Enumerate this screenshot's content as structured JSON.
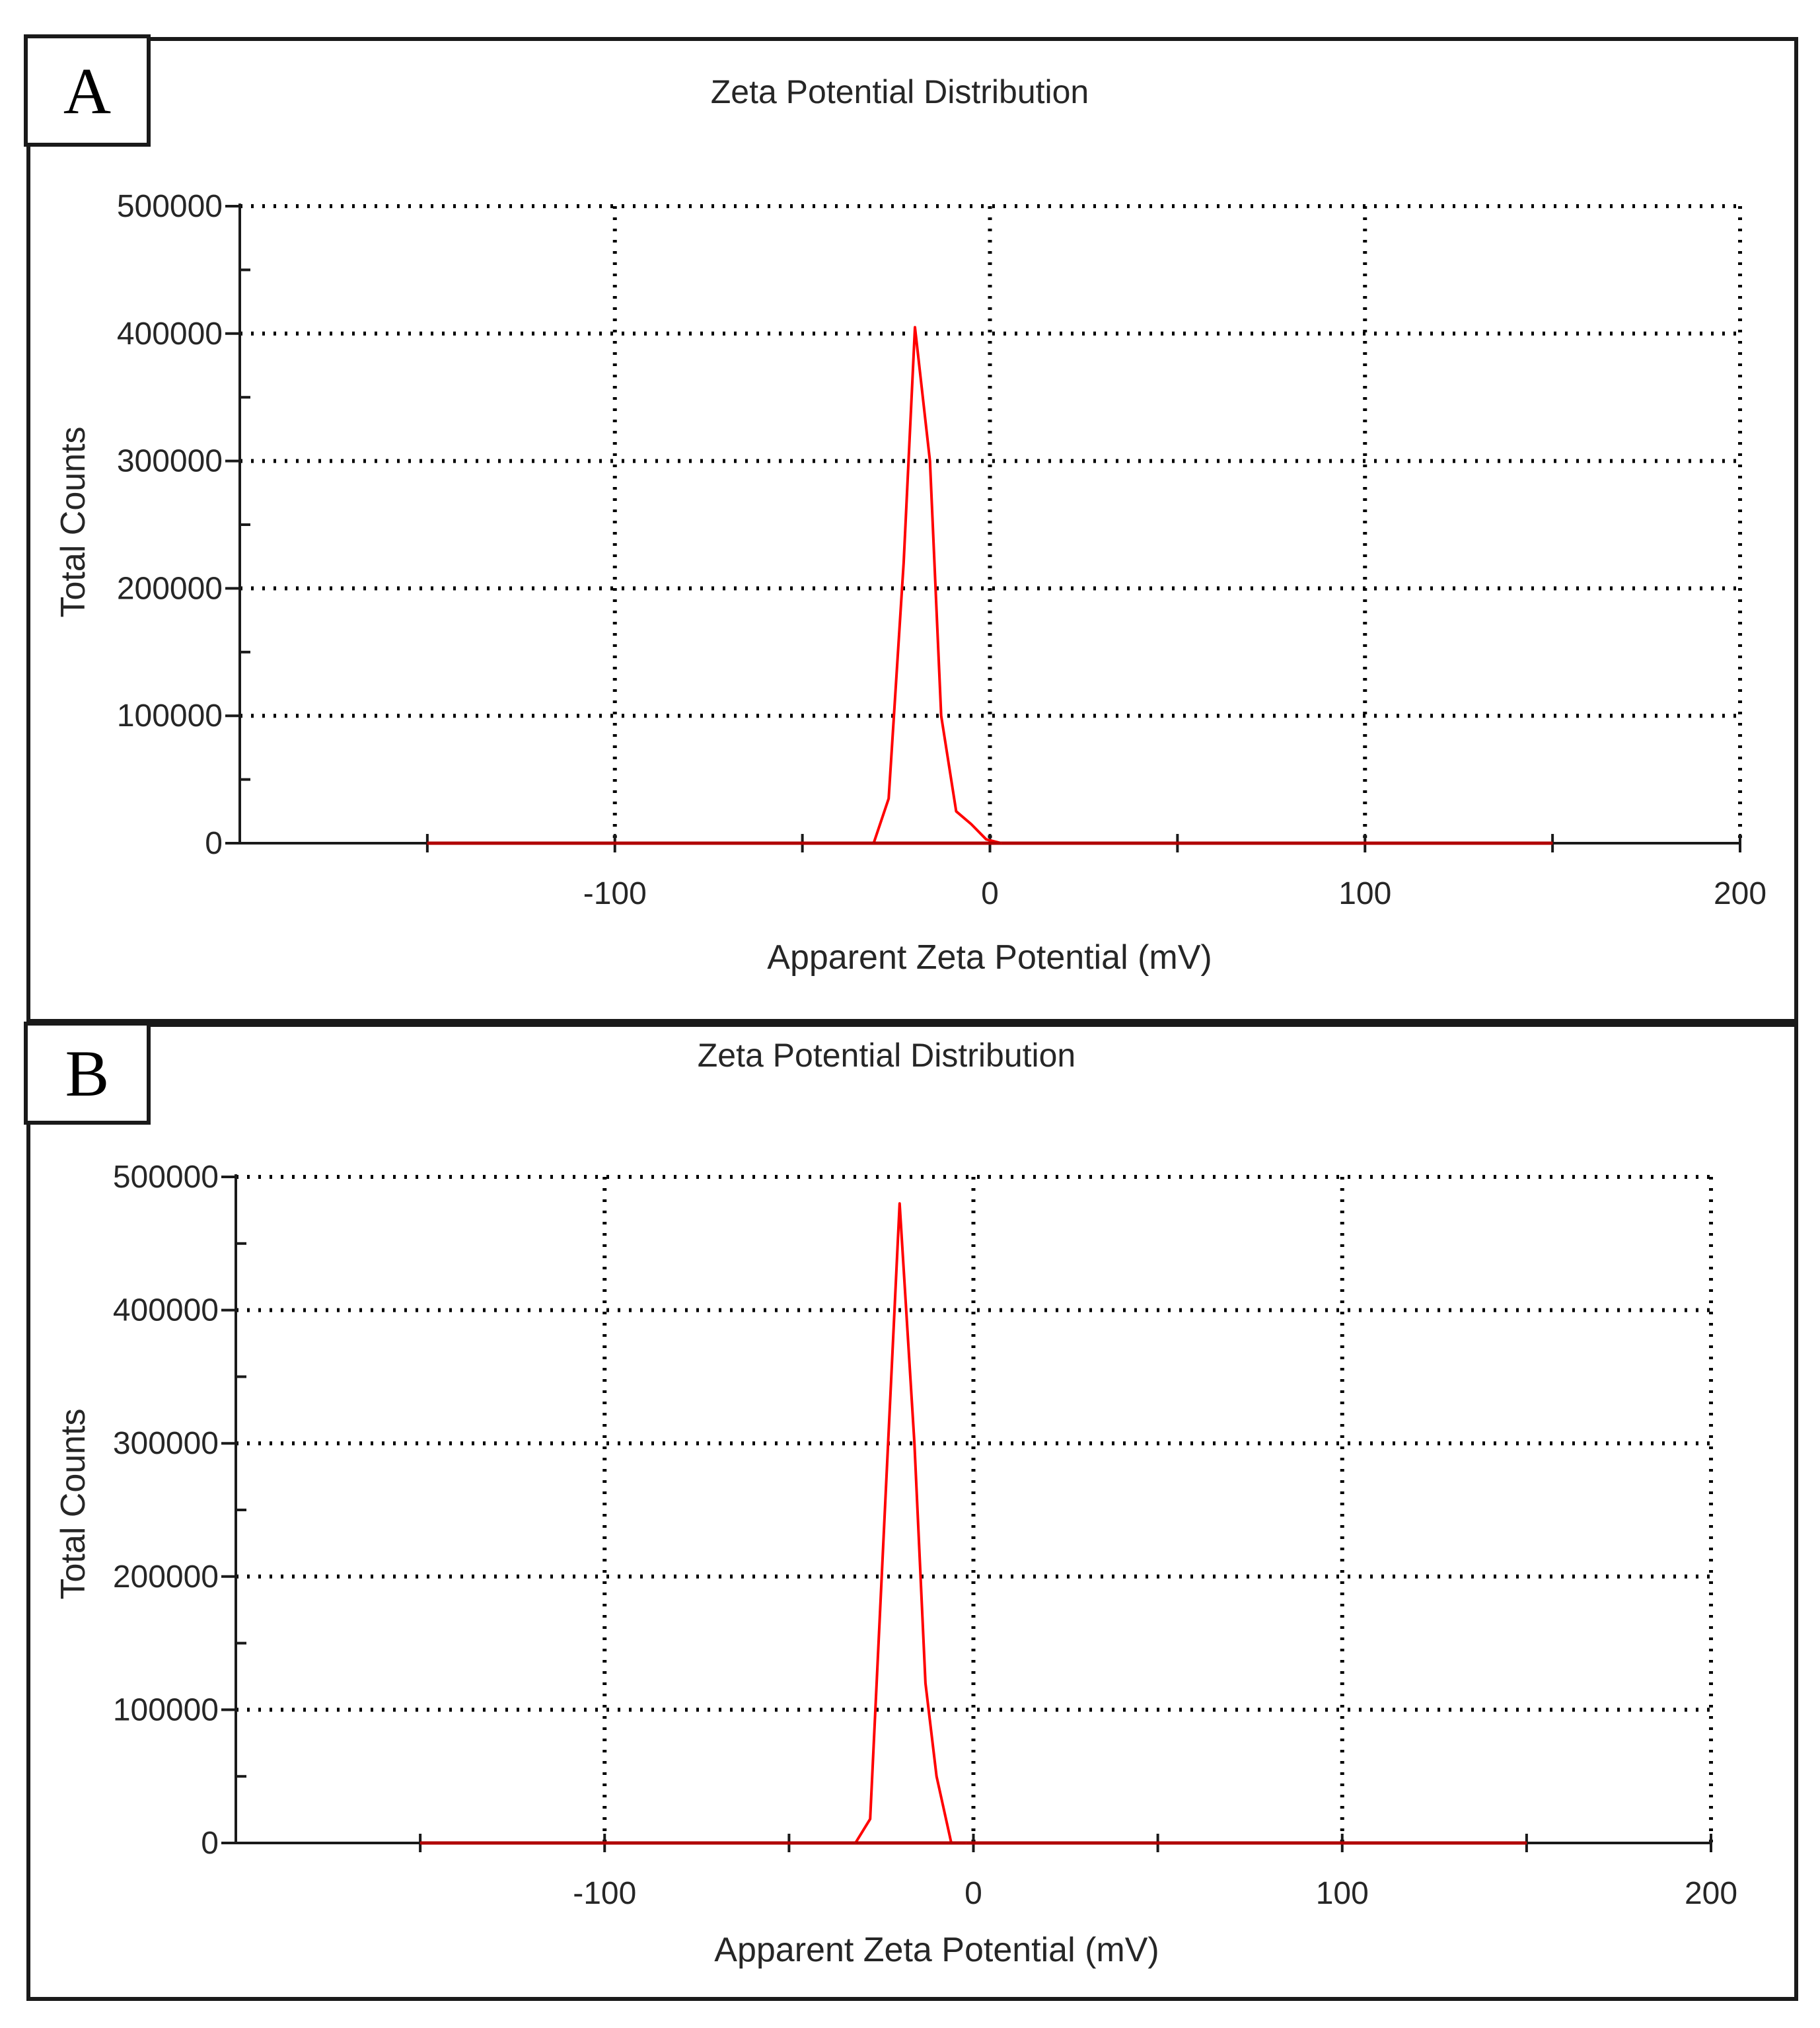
{
  "panels": [
    {
      "label": "A"
    },
    {
      "label": "B"
    }
  ],
  "colors": {
    "series": "#ff0000",
    "axis": "#1a1a1a",
    "grid": "#000000"
  },
  "chart_data": [
    {
      "type": "line",
      "panel": "A",
      "title": "Zeta Potential Distribution",
      "xlabel": "Apparent Zeta Potential (mV)",
      "ylabel": "Total Counts",
      "xlim": [
        -200,
        200
      ],
      "ylim": [
        0,
        500000
      ],
      "xticks": [
        -100,
        0,
        100,
        200
      ],
      "yticks": [
        0,
        100000,
        200000,
        300000,
        400000,
        500000
      ],
      "grid": true,
      "series": [
        {
          "name": "Total Counts",
          "x": [
            -150,
            -100,
            -50,
            -31,
            -27,
            -23,
            -20,
            -16,
            -13,
            -9,
            -5,
            -1,
            3,
            50,
            100,
            150
          ],
          "y": [
            0,
            0,
            0,
            0,
            35000,
            220000,
            405000,
            300000,
            100000,
            25000,
            15000,
            3000,
            0,
            0,
            0,
            0
          ]
        }
      ]
    },
    {
      "type": "line",
      "panel": "B",
      "title": "Zeta Potential Distribution",
      "xlabel": "Apparent Zeta Potential (mV)",
      "ylabel": "Total Counts",
      "xlim": [
        -200,
        200
      ],
      "ylim": [
        0,
        500000
      ],
      "xticks": [
        -100,
        0,
        100,
        200
      ],
      "yticks": [
        0,
        100000,
        200000,
        300000,
        400000,
        500000
      ],
      "grid": true,
      "series": [
        {
          "name": "Total Counts",
          "x": [
            -150,
            -100,
            -50,
            -32,
            -28,
            -24,
            -20,
            -16,
            -13,
            -10,
            -6,
            -2,
            50,
            100,
            150
          ],
          "y": [
            0,
            0,
            0,
            0,
            18000,
            250000,
            480000,
            300000,
            120000,
            50000,
            0,
            0,
            0,
            0,
            0
          ]
        }
      ]
    }
  ]
}
